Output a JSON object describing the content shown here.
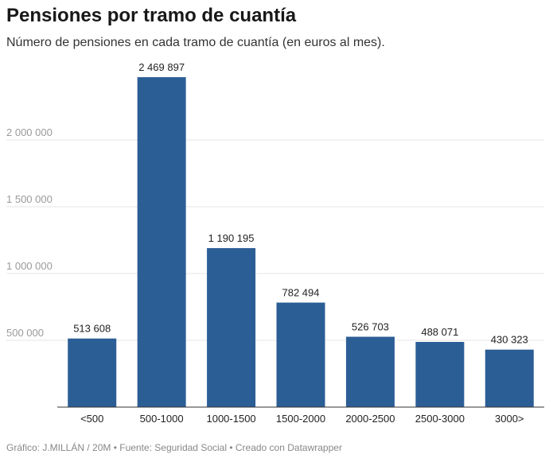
{
  "header": {
    "title": "Pensiones por tramo de cuantía",
    "subtitle": "Número de pensiones en cada tramo de cuantía (en euros al mes)."
  },
  "footer": {
    "credit": "Gráfico: J.MILLÁN / 20M • Fuente: Seguridad Social • Creado con Datawrapper"
  },
  "colors": {
    "bar": "#2c5e96",
    "grid": "#e4e4e4"
  },
  "chart_data": {
    "type": "bar",
    "categories": [
      "<500",
      "500-1000",
      "1000-1500",
      "1500-2000",
      "2000-2500",
      "2500-3000",
      "3000>"
    ],
    "values": [
      513608,
      2469897,
      1190195,
      782494,
      526703,
      488071,
      430323
    ],
    "value_labels": [
      "513 608",
      "2 469 897",
      "1 190 195",
      "782 494",
      "526 703",
      "488 071",
      "430 323"
    ],
    "yticks": [
      500000,
      1000000,
      1500000,
      2000000
    ],
    "ytick_labels": [
      "500 000",
      "1 000 000",
      "1 500 000",
      "2 000 000"
    ],
    "ylim": [
      0,
      2500000
    ],
    "grid": true
  }
}
